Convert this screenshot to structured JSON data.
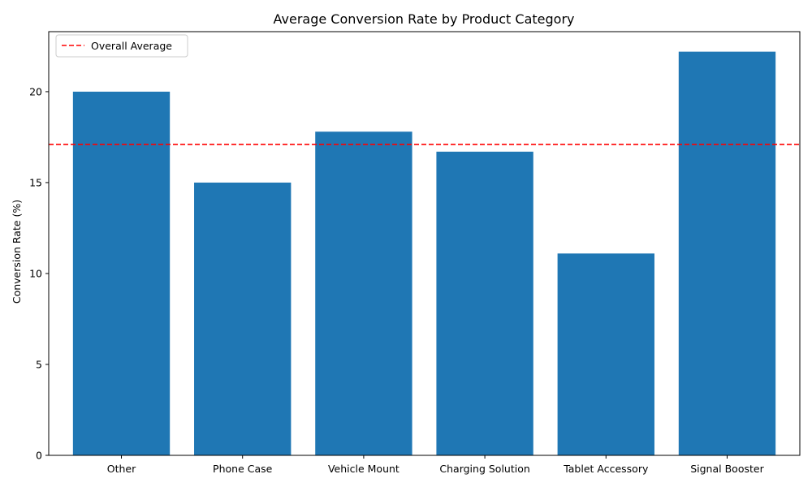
{
  "chart_data": {
    "type": "bar",
    "title": "Average Conversion Rate by Product Category",
    "xlabel": "",
    "ylabel": "Conversion Rate (%)",
    "categories": [
      "Other",
      "Phone Case",
      "Vehicle Mount",
      "Charging Solution",
      "Tablet Accessory",
      "Signal Booster"
    ],
    "values": [
      20.0,
      15.0,
      17.8,
      16.7,
      11.1,
      22.2
    ],
    "ylim": [
      0,
      23.3
    ],
    "yticks": [
      0,
      5,
      10,
      15,
      20
    ],
    "reference_line": {
      "label": "Overall Average",
      "value": 17.1,
      "color": "#ff0000",
      "style": "dashed"
    },
    "bar_color": "#1f77b4",
    "grid": false,
    "legend": {
      "placement": "top-left",
      "entries": [
        "Overall Average"
      ]
    }
  }
}
